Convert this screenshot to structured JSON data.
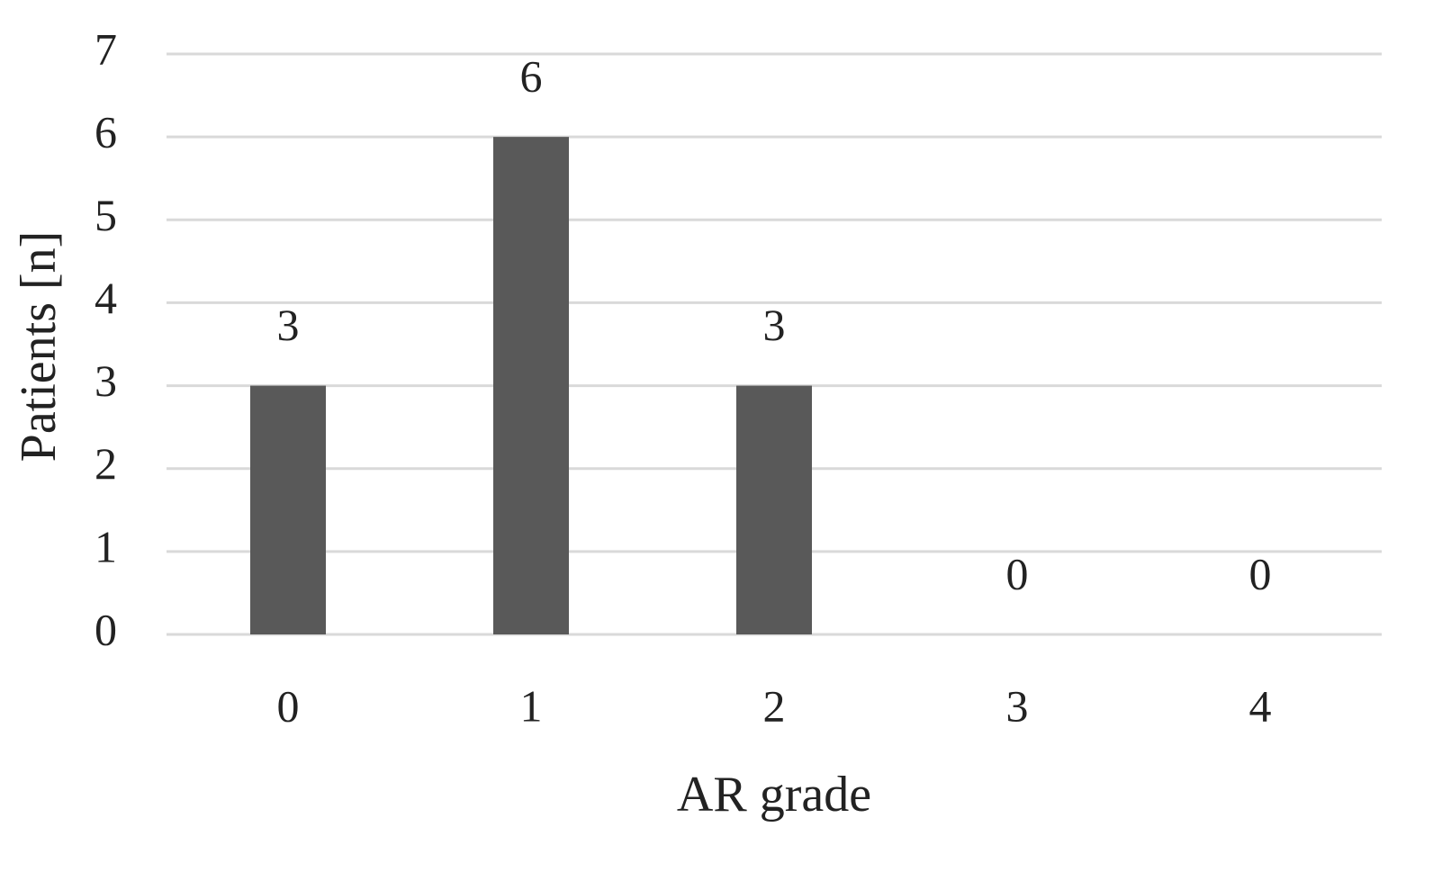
{
  "chart_data": {
    "type": "bar",
    "x_label": "AR grade",
    "y_label": "Patients [n]",
    "categories": [
      "0",
      "1",
      "2",
      "3",
      "4"
    ],
    "values": [
      3,
      6,
      3,
      0,
      0
    ],
    "color": "#595959",
    "ylim": [
      0,
      7
    ],
    "yticks": [
      0,
      1,
      2,
      3,
      4,
      5,
      6,
      7
    ],
    "grid": true
  }
}
